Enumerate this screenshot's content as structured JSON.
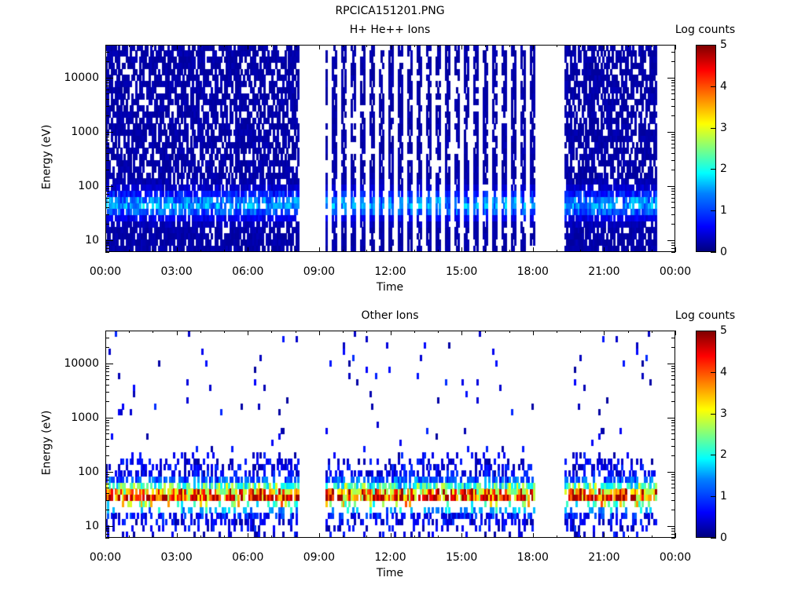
{
  "figure_title": "RPCICA151201.PNG",
  "colors": {
    "low": "#00007f",
    "mid": "#00ffff",
    "high": "#7f0000",
    "grid": "#000000"
  },
  "chart_data": [
    {
      "type": "heatmap",
      "title": "H+ He++ Ions",
      "xlabel": "Time",
      "ylabel": "Energy (eV)",
      "y_scale": "log",
      "ylim": [
        6,
        40000
      ],
      "xlim": [
        "00:00",
        "24:00"
      ],
      "x_ticks": [
        "00:00",
        "03:00",
        "06:00",
        "09:00",
        "12:00",
        "15:00",
        "18:00",
        "21:00",
        "00:00"
      ],
      "y_ticks": [
        "10",
        "100",
        "1000",
        "10000"
      ],
      "colorbar": {
        "label": "Log counts",
        "ticks": [
          "0",
          "1",
          "2",
          "3",
          "4",
          "5"
        ],
        "range": [
          0,
          5
        ]
      },
      "data_intervals_hours": [
        [
          0.0,
          8.15
        ],
        [
          9.3,
          18.1
        ],
        [
          19.35,
          23.2
        ]
      ],
      "energy_profile": {
        "peak_energy_eV": 45,
        "peak_log_counts": 1.5,
        "background_log_counts": 0.2
      }
    },
    {
      "type": "heatmap",
      "title": "Other Ions",
      "xlabel": "Time",
      "ylabel": "Energy (eV)",
      "y_scale": "log",
      "ylim": [
        6,
        40000
      ],
      "xlim": [
        "00:00",
        "24:00"
      ],
      "x_ticks": [
        "00:00",
        "03:00",
        "06:00",
        "09:00",
        "12:00",
        "15:00",
        "18:00",
        "21:00",
        "00:00"
      ],
      "y_ticks": [
        "10",
        "100",
        "1000",
        "10000"
      ],
      "colorbar": {
        "label": "Log counts",
        "ticks": [
          "0",
          "1",
          "2",
          "3",
          "4",
          "5"
        ],
        "range": [
          0,
          5
        ]
      },
      "data_intervals_hours": [
        [
          0.0,
          8.15
        ],
        [
          9.3,
          18.1
        ],
        [
          19.35,
          23.2
        ]
      ],
      "energy_profile": {
        "peak_energy_eV": 35,
        "peak_log_counts": 4.5,
        "background_log_counts": 0.8
      }
    }
  ]
}
